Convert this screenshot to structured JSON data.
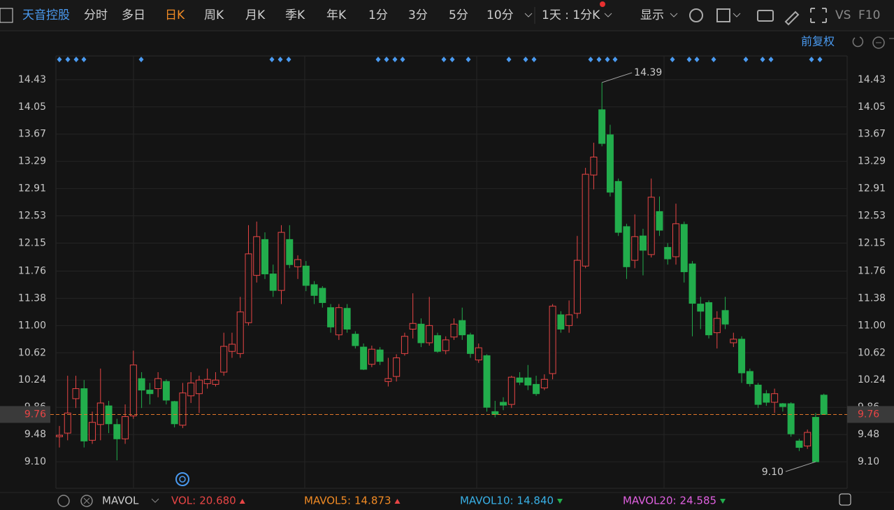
{
  "toolbar": {
    "stock": "天音控股",
    "periods": [
      {
        "label": "分时"
      },
      {
        "label": "多日"
      },
      {
        "label": "日K",
        "active": true
      },
      {
        "label": "周K"
      },
      {
        "label": "月K"
      },
      {
        "label": "季K"
      },
      {
        "label": "年K"
      },
      {
        "label": "1分"
      },
      {
        "label": "3分"
      },
      {
        "label": "5分"
      },
      {
        "label": "10分"
      }
    ],
    "interval": "1天 : 1分K",
    "display": "显示",
    "vs": "VS",
    "f10": "F10",
    "adjust": "前复权"
  },
  "chart_data": {
    "type": "candlestick",
    "up_color": "#e84545",
    "down_color": "#22ad4c",
    "ylim": [
      8.73,
      14.76
    ],
    "yticks": [
      14.43,
      14.05,
      13.67,
      13.29,
      12.91,
      12.53,
      12.15,
      11.76,
      11.38,
      {
        "value": 11,
        "label": "11.00"
      },
      10.62,
      10.24,
      9.86,
      9.48,
      {
        "value": 9.1,
        "label": "9.10"
      }
    ],
    "open": [
      9.45,
      9.5,
      9.98,
      10.12,
      9.4,
      9.62,
      9.88,
      9.62,
      9.42,
      9.74,
      10.26,
      10.1,
      10.12,
      10.22,
      9.94,
      9.61,
      10.02,
      10.05,
      10.19,
      10.18,
      10.35,
      10.64,
      10.61,
      11.04,
      11.7,
      12.2,
      11.72,
      11.49,
      12.2,
      11.82,
      11.83,
      11.57,
      11.52,
      11.25,
      10.87,
      11.24,
      10.88,
      10.7,
      10.46,
      10.66,
      10.22,
      10.29,
      10.61,
      10.95,
      11.02,
      10.76,
      10.86,
      10.65,
      10.84,
      11.07,
      10.87,
      10.52,
      10.58,
      9.8,
      9.93,
      9.9,
      10.27,
      10.27,
      10.18,
      10.13,
      10.33,
      11.15,
      11,
      11.17,
      11.83,
      13.1,
      14.01,
      13.66,
      13.01,
      12.38,
      11.91,
      12.25,
      11.99,
      12.59,
      12.09,
      11.96,
      12.41,
      11.86,
      11.3,
      11.32,
      10.9,
      11.21,
      10.76,
      10.81,
      10.36,
      10.17,
      10.05,
      9.93,
      9.91,
      9.91,
      9.39,
      9.32,
      9.72,
      10.03
    ],
    "high": [
      9.6,
      10.3,
      10.3,
      10.24,
      9.8,
      10.4,
      9.95,
      9.7,
      9.9,
      10.65,
      10.35,
      10.2,
      10.35,
      10.25,
      9.95,
      10.2,
      10.35,
      10.3,
      10.4,
      10.35,
      10.9,
      10.9,
      11.4,
      12.4,
      12.45,
      12.3,
      11.85,
      12.4,
      12.4,
      11.98,
      11.9,
      11.62,
      11.55,
      11.3,
      11.3,
      11.3,
      10.92,
      10.75,
      10.72,
      10.7,
      10.55,
      10.6,
      10.9,
      11.45,
      11.1,
      11.4,
      10.9,
      10.85,
      11.1,
      11.25,
      10.9,
      10.75,
      10.6,
      9.95,
      10,
      10.3,
      10.35,
      10.45,
      10.3,
      10.32,
      11.3,
      11.2,
      11.35,
      12.25,
      13.2,
      13.55,
      14.39,
      13.8,
      13.05,
      12.42,
      12.55,
      12.35,
      13.05,
      12.8,
      12.15,
      12.7,
      12.45,
      11.9,
      11.4,
      11.35,
      11.2,
      11.4,
      10.9,
      10.85,
      10.4,
      10.2,
      10.1,
      10.12,
      9.92,
      9.93,
      9.42,
      9.55,
      9.78,
      10.05
    ],
    "low": [
      9.3,
      9.4,
      9.85,
      9.3,
      9.35,
      9.4,
      9.5,
      9.12,
      9.35,
      9.7,
      9.85,
      9.9,
      10,
      9.9,
      9.58,
      9.57,
      9.92,
      9.78,
      10.12,
      10.15,
      10.3,
      10.55,
      10.55,
      11,
      11.6,
      11.65,
      11.4,
      11.3,
      11.8,
      11.65,
      11.48,
      11.3,
      11.25,
      10.9,
      10.8,
      10.9,
      10.68,
      10.38,
      10.42,
      10.45,
      10.15,
      10.22,
      10.58,
      10.82,
      10.7,
      10.72,
      10.62,
      10.6,
      10.8,
      10.8,
      10.55,
      10.48,
      9.8,
      9.72,
      9.82,
      9.85,
      10.17,
      10.1,
      10.02,
      10.1,
      10.25,
      10.9,
      10.9,
      11.1,
      11.8,
      12.9,
      13.5,
      12.8,
      12.25,
      11.65,
      11.8,
      11.7,
      11.95,
      12.25,
      11.85,
      11.85,
      11.6,
      10.85,
      10.95,
      10.82,
      10.68,
      10.95,
      10.7,
      10.2,
      10.15,
      9.85,
      9.88,
      9.78,
      9.8,
      9.45,
      9.25,
      9.28,
      9.1,
      9.76
    ],
    "close": [
      9.47,
      9.78,
      10.12,
      9.39,
      9.65,
      9.92,
      9.63,
      9.42,
      9.73,
      10.45,
      10.1,
      10.05,
      10.26,
      9.96,
      9.63,
      10.06,
      10.2,
      10.24,
      10.25,
      10.24,
      10.71,
      10.74,
      11.19,
      12,
      12.24,
      11.72,
      11.49,
      12.3,
      11.85,
      11.92,
      11.56,
      11.42,
      11.32,
      10.98,
      11.25,
      10.95,
      10.72,
      10.39,
      10.67,
      10.5,
      10.26,
      10.55,
      10.85,
      11.03,
      10.76,
      11,
      10.64,
      10.8,
      11.02,
      10.87,
      10.61,
      10.69,
      9.86,
      9.76,
      9.89,
      10.28,
      10.21,
      10.17,
      10.05,
      10.25,
      11.27,
      10.95,
      11.15,
      11.91,
      13.11,
      13.35,
      13.54,
      12.86,
      12.3,
      11.82,
      12.24,
      12.05,
      12.79,
      12.33,
      11.93,
      12.42,
      11.75,
      11.31,
      11.2,
      10.87,
      11.1,
      11.02,
      10.81,
      10.34,
      10.19,
      9.9,
      9.93,
      10.05,
      9.87,
      9.49,
      9.3,
      9.51,
      9.1,
      9.76
    ],
    "max_label": 14.39,
    "min_label": {
      "value": 9.1,
      "label": "9.10"
    },
    "last_price": 9.76,
    "last_price_color": "#e0762a",
    "indicator": "MAVOL",
    "legend": [
      {
        "name": "VOL:",
        "value": 20.68,
        "value_label": "20.680",
        "color": "#e84545",
        "trend": "up"
      },
      {
        "name": "MAVOL5:",
        "value": 14.873,
        "color": "#f08a24",
        "trend": "up"
      },
      {
        "name": "MAVOL10:",
        "value": 14.84,
        "value_label": "14.840",
        "color": "#38b0e6",
        "trend": "down"
      },
      {
        "name": "MAVOL20:",
        "value": 24.585,
        "color": "#e060e0",
        "trend": "down"
      }
    ]
  }
}
